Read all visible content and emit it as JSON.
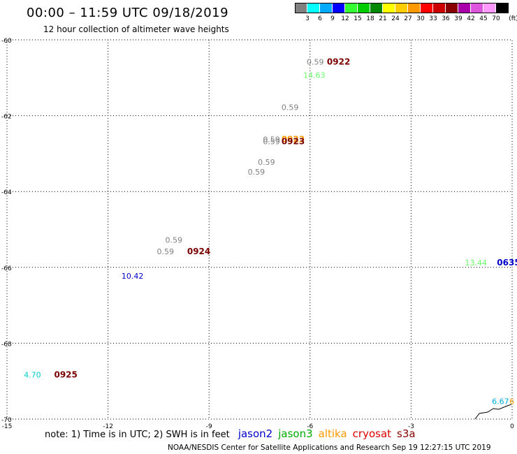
{
  "header": {
    "title": "00:00 – 11:59 UTC 09/18/2019",
    "subtitle": "12 hour collection of altimeter wave heights"
  },
  "legend": {
    "unit": "(ft)",
    "swatches": [
      "#808080",
      "#00ffff",
      "#00aaff",
      "#0000ff",
      "#33ff33",
      "#00cc00",
      "#008800",
      "#ffff00",
      "#ffcc00",
      "#ff9900",
      "#ff0000",
      "#cc0000",
      "#880000",
      "#aa00aa",
      "#dd55dd",
      "#ff99ff",
      "#000000"
    ],
    "labels": [
      "3",
      "6",
      "9",
      "12",
      "15",
      "18",
      "21",
      "24",
      "27",
      "30",
      "33",
      "36",
      "39",
      "42",
      "45",
      "70"
    ]
  },
  "map": {
    "x_ticks": [
      "-15",
      "-12",
      "-9",
      "-6",
      "-3",
      "0"
    ],
    "y_ticks": [
      "-60",
      "-62",
      "-64",
      "-66",
      "-68",
      "-70"
    ],
    "x_range": [
      -15,
      0
    ],
    "y_range": [
      -70,
      -60
    ],
    "observations": [
      {
        "lon": -6.1,
        "lat": -60.65,
        "text": "0.59",
        "color": "#808080"
      },
      {
        "lon": -6.2,
        "lat": -61.0,
        "text": "14.63",
        "color": "#66ff66"
      },
      {
        "lon": -6.85,
        "lat": -61.85,
        "text": "0.59",
        "color": "#808080"
      },
      {
        "lon": -7.4,
        "lat": -62.7,
        "text": "0.59",
        "color": "#808080"
      },
      {
        "lon": -7.4,
        "lat": -62.75,
        "text": "0.59",
        "color": "#808080"
      },
      {
        "lon": -7.55,
        "lat": -63.3,
        "text": "0.59",
        "color": "#808080"
      },
      {
        "lon": -7.85,
        "lat": -63.55,
        "text": "0.59",
        "color": "#808080"
      },
      {
        "lon": -10.3,
        "lat": -65.35,
        "text": "0.59",
        "color": "#808080"
      },
      {
        "lon": -10.55,
        "lat": -65.65,
        "text": "0.59",
        "color": "#808080"
      },
      {
        "lon": -11.6,
        "lat": -66.3,
        "text": "10.42",
        "color": "#0000cc"
      },
      {
        "lon": -1.4,
        "lat": -65.95,
        "text": "13.44",
        "color": "#66ff66"
      },
      {
        "lon": -14.5,
        "lat": -68.9,
        "text": "4.70",
        "color": "#00cccc"
      },
      {
        "lon": -0.6,
        "lat": -69.6,
        "text": "6.67",
        "color": "#00aadd"
      },
      {
        "lon": -0.08,
        "lat": -69.6,
        "text": "6",
        "color": "#ff9900"
      }
    ],
    "pass_labels": [
      {
        "lon": -5.5,
        "lat": -60.65,
        "text": "0922",
        "color": "#7a0000"
      },
      {
        "lon": -6.85,
        "lat": -62.7,
        "text": "0923",
        "color": "#ff9900"
      },
      {
        "lon": -6.85,
        "lat": -62.75,
        "text": "0923",
        "color": "#7a0000"
      },
      {
        "lon": -9.65,
        "lat": -65.65,
        "text": "0924",
        "color": "#7a0000"
      },
      {
        "lon": -0.45,
        "lat": -65.95,
        "text": "0635",
        "color": "#0000cc"
      },
      {
        "lon": -13.6,
        "lat": -68.9,
        "text": "0925",
        "color": "#7a0000"
      }
    ]
  },
  "footer": {
    "note": "note: 1) Time is in UTC; 2) SWH is in feet",
    "satellites": [
      {
        "name": "jason2",
        "color": "#0000cc"
      },
      {
        "name": "jason3",
        "color": "#00aa00"
      },
      {
        "name": "altika",
        "color": "#ff9900"
      },
      {
        "name": "cryosat",
        "color": "#dd0000"
      },
      {
        "name": "s3a",
        "color": "#880000"
      }
    ],
    "credit": "NOAA/NESDIS Center for Satellite Applications and Research    Sep 19 12:27:15 UTC 2019"
  }
}
